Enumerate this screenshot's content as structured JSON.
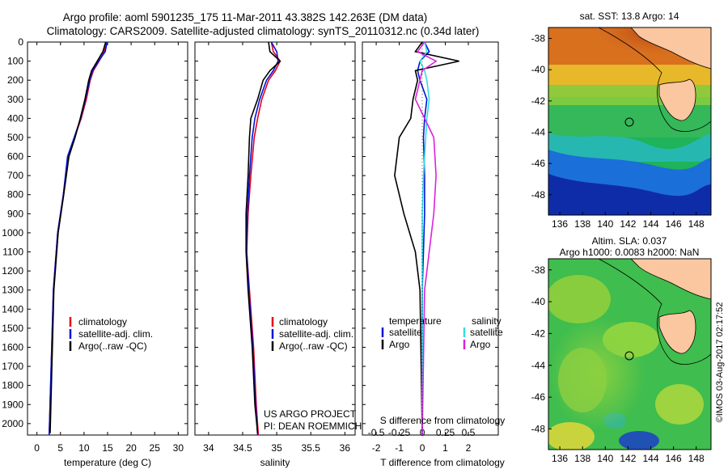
{
  "title_line1": "Argo profile: aoml 5901235_175 11-Mar-2011 43.382S 142.263E (DM data)",
  "title_line2": "Climatology: CARS2009. Satellite-adjusted climatology: synTS_20110312.nc (0.34d later)",
  "colors": {
    "climatology": "#e8001c",
    "satellite": "#0014d8",
    "argo": "#000000",
    "sat_salinity": "#33dde8",
    "argo_salinity": "#dd22dd"
  },
  "depth_ticks": [
    "0",
    "100",
    "200",
    "300",
    "400",
    "500",
    "600",
    "700",
    "800",
    "900",
    "1000",
    "1100",
    "1200",
    "1300",
    "1400",
    "1500",
    "1600",
    "1700",
    "1800",
    "1900",
    "2000"
  ],
  "chart_data": [
    {
      "type": "line",
      "name": "temperature",
      "xlabel": "temperature (deg C)",
      "xlim": [
        -2,
        32
      ],
      "ylim": [
        2060,
        0
      ],
      "xticks": [
        "0",
        "5",
        "10",
        "15",
        "20",
        "25",
        "30"
      ],
      "legend": [
        "climatology",
        "satellite-adj. clim.",
        "Argo(..raw -QC)"
      ],
      "series": [
        {
          "name": "climatology",
          "x": [
            14.6,
            14.3,
            13.2,
            12.0,
            11.3,
            10.5,
            9.4,
            8.0,
            6.6,
            5.6,
            4.4,
            3.5,
            2.6
          ],
          "y": [
            0,
            50,
            100,
            150,
            200,
            300,
            400,
            500,
            600,
            800,
            1000,
            1300,
            2060
          ]
        },
        {
          "name": "satellite-adj. clim.",
          "x": [
            14.9,
            14.5,
            13.1,
            11.8,
            11.2,
            10.3,
            9.3,
            7.9,
            6.5,
            5.6,
            4.4,
            3.5,
            2.6
          ],
          "y": [
            0,
            50,
            100,
            150,
            200,
            300,
            400,
            500,
            600,
            800,
            1000,
            1300,
            2060
          ]
        },
        {
          "name": "Argo(..raw -QC)",
          "x": [
            14.6,
            14.0,
            12.8,
            11.6,
            11.0,
            10.2,
            9.2,
            8.1,
            6.8,
            5.7,
            4.5,
            3.6,
            2.8
          ],
          "y": [
            0,
            50,
            100,
            150,
            200,
            300,
            400,
            500,
            600,
            800,
            1000,
            1300,
            2050
          ]
        }
      ]
    },
    {
      "type": "line",
      "name": "salinity",
      "xlabel": "salinity",
      "xlim": [
        33.8,
        36.15
      ],
      "ylim": [
        2060,
        0
      ],
      "xticks": [
        "34",
        "34.5",
        "35",
        "35.5",
        "36"
      ],
      "legend": [
        "climatology",
        "satellite-adj. clim.",
        "Argo(..raw -QC)"
      ],
      "annotation": [
        "US ARGO PROJECT",
        "PI: DEAN ROEMMICH"
      ],
      "series": [
        {
          "name": "climatology",
          "x": [
            34.92,
            34.95,
            35.05,
            34.98,
            34.88,
            34.78,
            34.72,
            34.67,
            34.62,
            34.58,
            34.56,
            34.6,
            34.66,
            34.7,
            34.73
          ],
          "y": [
            0,
            50,
            100,
            150,
            200,
            300,
            400,
            500,
            700,
            900,
            1100,
            1300,
            1600,
            1900,
            2060
          ]
        },
        {
          "name": "satellite-adj. clim.",
          "x": [
            34.92,
            35.0,
            35.02,
            34.95,
            34.85,
            34.75,
            34.68,
            34.64,
            34.6,
            34.57,
            34.56,
            34.59,
            34.65,
            34.69,
            34.72
          ],
          "y": [
            0,
            50,
            100,
            150,
            200,
            300,
            400,
            500,
            700,
            900,
            1100,
            1300,
            1600,
            1900,
            2060
          ]
        },
        {
          "name": "Argo(..raw -QC)",
          "x": [
            34.88,
            34.9,
            35.05,
            34.9,
            34.8,
            34.72,
            34.62,
            34.6,
            34.58,
            34.55,
            34.55,
            34.58,
            34.64,
            34.68,
            34.72
          ],
          "y": [
            0,
            50,
            100,
            150,
            200,
            300,
            400,
            500,
            700,
            900,
            1100,
            1300,
            1600,
            1900,
            2050
          ]
        }
      ]
    },
    {
      "type": "line",
      "name": "differences",
      "xlabel": "T difference from climatology",
      "xlabel_top": "S difference from climatology",
      "xlim": [
        -2.6,
        3.3
      ],
      "ylim": [
        2060,
        0
      ],
      "xticks": [
        "-2",
        "-1",
        "0",
        "1",
        "2"
      ],
      "xticks_top": [
        "-0.5",
        "-0.25",
        "0",
        "0.25",
        "0.5"
      ],
      "legend_left_title": "temperature",
      "legend_right_title": "salinity",
      "legend": [
        "satellite",
        "Argo",
        "satellite",
        "Argo"
      ],
      "series": [
        {
          "name": "temperature satellite",
          "x": [
            0.1,
            0.3,
            -0.1,
            -0.2,
            -0.1,
            0.2,
            0.1,
            0.05,
            0.1,
            0.1,
            0.05,
            0.0,
            0.0
          ],
          "y": [
            0,
            50,
            100,
            150,
            200,
            300,
            400,
            500,
            700,
            900,
            1100,
            1300,
            2060
          ]
        },
        {
          "name": "temperature Argo",
          "x": [
            0.0,
            -0.3,
            1.6,
            -0.3,
            -0.2,
            -0.4,
            -0.5,
            -1.0,
            -1.2,
            -0.8,
            -0.3,
            -0.1,
            0.0
          ],
          "y": [
            0,
            50,
            100,
            150,
            200,
            300,
            400,
            500,
            700,
            900,
            1100,
            1300,
            2060
          ]
        },
        {
          "name": "salinity satellite",
          "x": [
            0.1,
            0.2,
            -0.1,
            0.1,
            0.2,
            0.3,
            0.2,
            0.15,
            0.05,
            0.0,
            0.0,
            0.0,
            0.0
          ],
          "y": [
            0,
            50,
            100,
            150,
            200,
            300,
            400,
            500,
            700,
            900,
            1100,
            1300,
            2060
          ]
        },
        {
          "name": "salinity Argo",
          "x": [
            0.1,
            -0.2,
            0.6,
            0.0,
            -0.1,
            -0.3,
            0.1,
            0.5,
            0.6,
            0.5,
            0.3,
            0.1,
            0.0
          ],
          "y": [
            0,
            50,
            100,
            150,
            200,
            300,
            400,
            500,
            700,
            900,
            1100,
            1300,
            2060
          ]
        }
      ]
    },
    {
      "type": "heatmap",
      "name": "sst map",
      "title": "sat. SST: 13.8 Argo: 14",
      "xticks": [
        "136",
        "138",
        "140",
        "142",
        "144",
        "146",
        "148"
      ],
      "yticks": [
        "-38",
        "-40",
        "-42",
        "-44",
        "-46",
        "-48"
      ],
      "xlim": [
        135,
        149.3
      ],
      "ylim": [
        -49.3,
        -37.3
      ],
      "argo_position": [
        142.263,
        -43.382
      ]
    },
    {
      "type": "heatmap",
      "name": "sla map",
      "title": "Altim. SLA: 0.037",
      "subtitle": "Argo h1000: 0.0083 h2000: NaN",
      "xticks": [
        "136",
        "138",
        "140",
        "142",
        "144",
        "146",
        "148"
      ],
      "yticks": [
        "-38",
        "-40",
        "-42",
        "-44",
        "-46",
        "-48"
      ],
      "xlim": [
        135,
        149.3
      ],
      "ylim": [
        -49.3,
        -37.3
      ],
      "argo_position": [
        142.263,
        -43.382
      ]
    }
  ],
  "credit": "©IMOS 03-Aug-2017 02:17:52"
}
